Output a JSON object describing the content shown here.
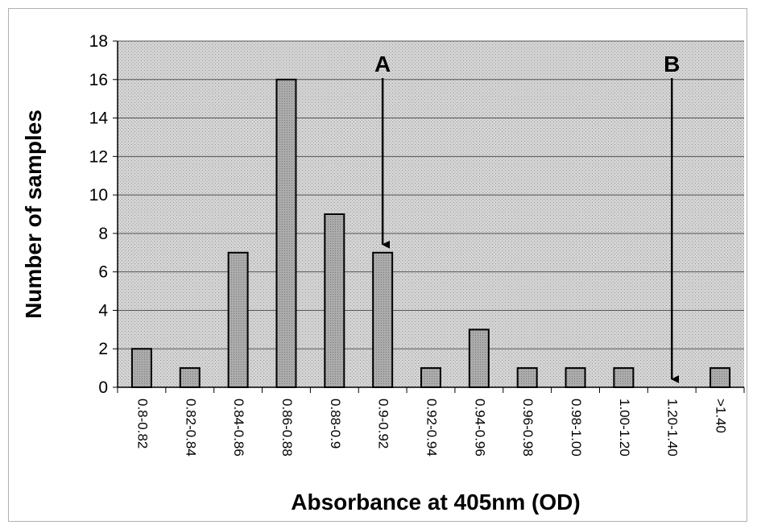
{
  "chart_data": {
    "type": "bar",
    "categories": [
      "0.8-0.82",
      "0.82-0.84",
      "0.84-0.86",
      "0.86-0.88",
      "0.88-0.9",
      "0.9-0.92",
      "0.92-0.94",
      "0.94-0.96",
      "0.96-0.98",
      "0.98-1.00",
      "1.00-1.20",
      "1.20-1.40",
      ">1.40"
    ],
    "values": [
      2,
      1,
      7,
      16,
      9,
      7,
      1,
      3,
      1,
      1,
      1,
      0,
      1
    ],
    "xlabel": "Absorbance at 405nm (OD)",
    "ylabel": "Number of samples",
    "ylim": [
      0,
      18
    ],
    "yticks": [
      "0",
      "2",
      "4",
      "6",
      "8",
      "10",
      "12",
      "14",
      "16",
      "18"
    ],
    "grid": true,
    "legend": "none",
    "annotations": [
      {
        "label": "A",
        "category": "0.9-0.92",
        "points_to": 7
      },
      {
        "label": "B",
        "category": "1.20-1.40",
        "points_to": 0
      }
    ],
    "colors": {
      "bar": "#a8a8a8",
      "plot_background": "#d6d6d6",
      "grid": "#555555"
    }
  }
}
